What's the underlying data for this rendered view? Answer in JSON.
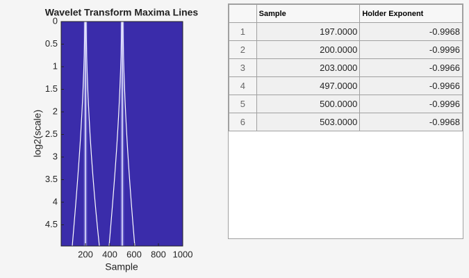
{
  "chart_data": {
    "type": "image",
    "title": "Wavelet Transform Maxima Lines",
    "xlabel": "Sample",
    "ylabel": "log2(scale)",
    "xlim": [
      0,
      1000
    ],
    "ylim": [
      0,
      4.97
    ],
    "y_reversed": true,
    "xticks": [
      200,
      400,
      600,
      800,
      1000
    ],
    "yticks": [
      0,
      0.5,
      1,
      1.5,
      2,
      2.5,
      3,
      3.5,
      4,
      4.5
    ],
    "color": "#3a2caa",
    "line_color": "#ffffff"
  },
  "table": {
    "columns": [
      "",
      "Sample",
      "Holder Exponent"
    ],
    "rows": [
      [
        "1",
        "197.0000",
        "-0.9968"
      ],
      [
        "2",
        "200.0000",
        "-0.9996"
      ],
      [
        "3",
        "203.0000",
        "-0.9966"
      ],
      [
        "4",
        "497.0000",
        "-0.9966"
      ],
      [
        "5",
        "500.0000",
        "-0.9996"
      ],
      [
        "6",
        "503.0000",
        "-0.9968"
      ]
    ]
  }
}
